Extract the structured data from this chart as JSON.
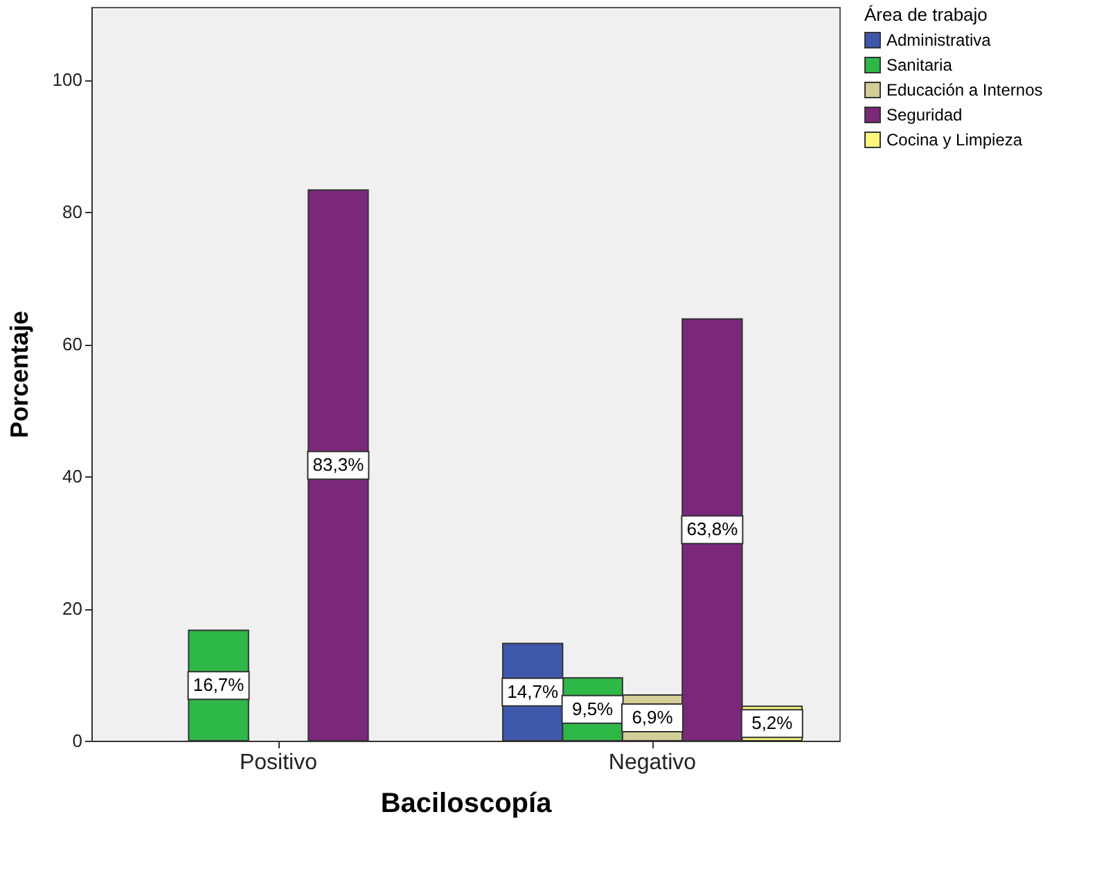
{
  "chart_data": {
    "type": "bar",
    "xlabel": "Baciloscopía",
    "ylabel": "Porcentaje",
    "legend_title": "Área de trabajo",
    "categories": [
      "Positivo",
      "Negativo"
    ],
    "series": [
      {
        "name": "Administrativa",
        "color": "#3e58ac",
        "values": [
          null,
          14.7
        ],
        "value_labels": [
          null,
          "14,7%"
        ]
      },
      {
        "name": "Sanitaria",
        "color": "#2eb848",
        "values": [
          16.7,
          9.5
        ],
        "value_labels": [
          "16,7%",
          "9,5%"
        ]
      },
      {
        "name": "Educación a Internos",
        "color": "#d3ce97",
        "values": [
          null,
          6.9
        ],
        "value_labels": [
          null,
          "6,9%"
        ]
      },
      {
        "name": "Seguridad",
        "color": "#7b287b",
        "values": [
          83.3,
          63.8
        ],
        "value_labels": [
          "83,3%",
          "63,8%"
        ]
      },
      {
        "name": "Cocina y Limpieza",
        "color": "#fbf87d",
        "values": [
          null,
          5.2
        ],
        "value_labels": [
          null,
          "5,2%"
        ]
      }
    ],
    "ylim": [
      0,
      111
    ],
    "yticks": [
      0,
      20,
      40,
      60,
      80,
      100
    ],
    "grid": false,
    "legend": "top right"
  }
}
